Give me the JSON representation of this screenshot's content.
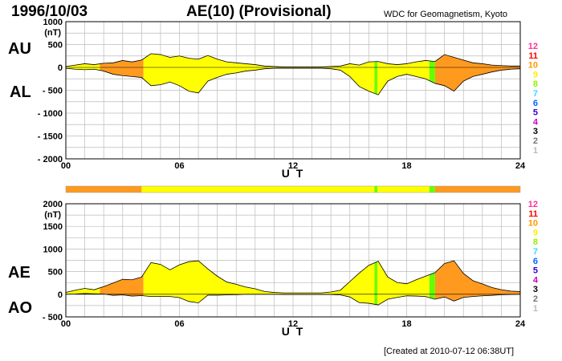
{
  "header": {
    "date": "1996/10/03",
    "title": "AE(10) (Provisional)",
    "organization": "WDC for Geomagnetism, Kyoto"
  },
  "footer": {
    "created": "[Created at 2010-07-12 06:38UT]"
  },
  "colors": {
    "yellow": "#ffff00",
    "orange": "#ff9a1e",
    "green": "#66ff00",
    "grid": "#bbbbbb",
    "activity_bar_yellow": "#ffff00",
    "activity_bar_orange": "#ff9a1e"
  },
  "activity_legend": [
    {
      "label": "12",
      "color": "#ff3399"
    },
    {
      "label": "11",
      "color": "#ff0000"
    },
    {
      "label": "10",
      "color": "#ff9900"
    },
    {
      "label": "9",
      "color": "#ffee00"
    },
    {
      "label": "8",
      "color": "#99ee00"
    },
    {
      "label": "7",
      "color": "#33ddff"
    },
    {
      "label": "6",
      "color": "#0066ff"
    },
    {
      "label": "5",
      "color": "#3300cc"
    },
    {
      "label": "4",
      "color": "#cc00cc"
    },
    {
      "label": "3",
      "color": "#000000"
    },
    {
      "label": "2",
      "color": "#777777"
    },
    {
      "label": "1",
      "color": "#bbbbbb"
    }
  ],
  "activity_bar": [
    {
      "from": 0,
      "to": 4,
      "level": "orange"
    },
    {
      "from": 4,
      "to": 16.3,
      "level": "yellow"
    },
    {
      "from": 16.3,
      "to": 16.45,
      "level": "green"
    },
    {
      "from": 16.45,
      "to": 19.2,
      "level": "yellow"
    },
    {
      "from": 19.2,
      "to": 19.5,
      "level": "green"
    },
    {
      "from": 19.5,
      "to": 24,
      "level": "orange"
    }
  ],
  "chart_data": [
    {
      "type": "area",
      "name": "AU/AL",
      "labels": {
        "upper": "AU",
        "lower": "AL"
      },
      "ylabel": "(nT)",
      "xlabel": "U T",
      "xlim": [
        0,
        24
      ],
      "ylim": [
        -2000,
        1000
      ],
      "yticks": [
        1000,
        500,
        0,
        -500,
        -1000,
        -1500,
        -2000
      ],
      "ytick_labels": [
        "1000",
        "500",
        "0",
        "- 500",
        "- 1000",
        "- 1500",
        "- 2000"
      ],
      "xticks": [
        0,
        6,
        12,
        18,
        24
      ],
      "xtick_labels": [
        "00",
        "06",
        "12",
        "18",
        "24"
      ],
      "grid": true,
      "colored_segments": [
        {
          "from": 0,
          "to": 1.8,
          "color": "yellow"
        },
        {
          "from": 1.8,
          "to": 4.1,
          "color": "orange"
        },
        {
          "from": 4.1,
          "to": 16.3,
          "color": "yellow"
        },
        {
          "from": 16.3,
          "to": 16.45,
          "color": "green"
        },
        {
          "from": 16.45,
          "to": 19.2,
          "color": "yellow"
        },
        {
          "from": 19.2,
          "to": 19.5,
          "color": "green"
        },
        {
          "from": 19.5,
          "to": 24,
          "color": "orange"
        }
      ],
      "series": [
        {
          "name": "AU",
          "x": [
            0,
            0.5,
            1,
            1.5,
            2,
            2.5,
            3,
            3.5,
            4,
            4.5,
            5,
            5.5,
            6,
            6.5,
            7,
            7.5,
            8,
            8.5,
            9,
            9.5,
            10,
            10.5,
            11,
            11.5,
            12,
            12.5,
            13,
            13.5,
            14,
            14.5,
            15,
            15.5,
            16,
            16.5,
            17,
            17.5,
            18,
            18.5,
            19,
            19.5,
            20,
            20.5,
            21,
            21.5,
            22,
            22.5,
            23,
            23.5,
            24
          ],
          "values": [
            20,
            50,
            80,
            60,
            90,
            100,
            150,
            120,
            160,
            300,
            280,
            220,
            250,
            200,
            180,
            260,
            180,
            120,
            100,
            80,
            60,
            30,
            20,
            10,
            10,
            10,
            10,
            10,
            20,
            30,
            80,
            50,
            120,
            130,
            80,
            60,
            80,
            120,
            150,
            130,
            280,
            220,
            160,
            100,
            80,
            50,
            40,
            30,
            30
          ]
        },
        {
          "name": "AL",
          "x": [
            0,
            0.5,
            1,
            1.5,
            2,
            2.5,
            3,
            3.5,
            4,
            4.5,
            5,
            5.5,
            6,
            6.5,
            7,
            7.5,
            8,
            8.5,
            9,
            9.5,
            10,
            10.5,
            11,
            11.5,
            12,
            12.5,
            13,
            13.5,
            14,
            14.5,
            15,
            15.5,
            16,
            16.5,
            17,
            17.5,
            18,
            18.5,
            19,
            19.5,
            20,
            20.5,
            21,
            21.5,
            22,
            22.5,
            23,
            23.5,
            24
          ],
          "values": [
            -20,
            -40,
            -50,
            -40,
            -80,
            -150,
            -180,
            -200,
            -220,
            -400,
            -380,
            -320,
            -400,
            -520,
            -560,
            -300,
            -220,
            -150,
            -120,
            -80,
            -60,
            -30,
            -20,
            -20,
            -20,
            -20,
            -20,
            -20,
            -30,
            -60,
            -200,
            -420,
            -520,
            -600,
            -300,
            -200,
            -150,
            -200,
            -250,
            -350,
            -400,
            -520,
            -300,
            -200,
            -150,
            -100,
            -60,
            -40,
            -30
          ]
        }
      ]
    },
    {
      "type": "area",
      "name": "AE/AO",
      "labels": {
        "upper": "AE",
        "lower": "AO"
      },
      "ylabel": "(nT)",
      "xlabel": "U T",
      "xlim": [
        0,
        24
      ],
      "ylim": [
        -500,
        2000
      ],
      "yticks": [
        2000,
        1500,
        1000,
        500,
        0,
        -500
      ],
      "ytick_labels": [
        "2000",
        "1500",
        "1000",
        "500",
        "0",
        "- 500"
      ],
      "xticks": [
        0,
        6,
        12,
        18,
        24
      ],
      "xtick_labels": [
        "00",
        "06",
        "12",
        "18",
        "24"
      ],
      "grid": true,
      "colored_segments": [
        {
          "from": 0,
          "to": 1.8,
          "color": "yellow"
        },
        {
          "from": 1.8,
          "to": 4.1,
          "color": "orange"
        },
        {
          "from": 4.1,
          "to": 16.3,
          "color": "yellow"
        },
        {
          "from": 16.3,
          "to": 16.45,
          "color": "green"
        },
        {
          "from": 16.45,
          "to": 19.2,
          "color": "yellow"
        },
        {
          "from": 19.2,
          "to": 19.5,
          "color": "green"
        },
        {
          "from": 19.5,
          "to": 24,
          "color": "orange"
        }
      ],
      "series": [
        {
          "name": "AE",
          "x": [
            0,
            0.5,
            1,
            1.5,
            2,
            2.5,
            3,
            3.5,
            4,
            4.5,
            5,
            5.5,
            6,
            6.5,
            7,
            7.5,
            8,
            8.5,
            9,
            9.5,
            10,
            10.5,
            11,
            11.5,
            12,
            12.5,
            13,
            13.5,
            14,
            14.5,
            15,
            15.5,
            16,
            16.5,
            17,
            17.5,
            18,
            18.5,
            19,
            19.5,
            20,
            20.5,
            21,
            21.5,
            22,
            22.5,
            23,
            23.5,
            24
          ],
          "values": [
            40,
            90,
            130,
            100,
            170,
            250,
            330,
            320,
            380,
            700,
            660,
            540,
            650,
            720,
            740,
            560,
            400,
            270,
            220,
            160,
            120,
            60,
            40,
            30,
            30,
            30,
            30,
            30,
            50,
            90,
            280,
            470,
            640,
            730,
            380,
            260,
            230,
            320,
            400,
            480,
            680,
            740,
            460,
            300,
            230,
            150,
            100,
            70,
            60
          ]
        },
        {
          "name": "AO",
          "x": [
            0,
            0.5,
            1,
            1.5,
            2,
            2.5,
            3,
            3.5,
            4,
            4.5,
            5,
            5.5,
            6,
            6.5,
            7,
            7.5,
            8,
            8.5,
            9,
            9.5,
            10,
            10.5,
            11,
            11.5,
            12,
            12.5,
            13,
            13.5,
            14,
            14.5,
            15,
            15.5,
            16,
            16.5,
            17,
            17.5,
            18,
            18.5,
            19,
            19.5,
            20,
            20.5,
            21,
            21.5,
            22,
            22.5,
            23,
            23.5,
            24
          ],
          "values": [
            0,
            5,
            15,
            10,
            5,
            -25,
            -15,
            -40,
            -30,
            -50,
            -50,
            -50,
            -75,
            -160,
            -190,
            -20,
            -20,
            -15,
            -10,
            0,
            0,
            0,
            0,
            -5,
            -5,
            -5,
            -5,
            -5,
            -5,
            -15,
            -60,
            -185,
            -200,
            -235,
            -110,
            -70,
            -35,
            -40,
            -50,
            -110,
            -60,
            -150,
            -70,
            -50,
            -35,
            -25,
            -10,
            -5,
            0
          ]
        }
      ]
    }
  ]
}
